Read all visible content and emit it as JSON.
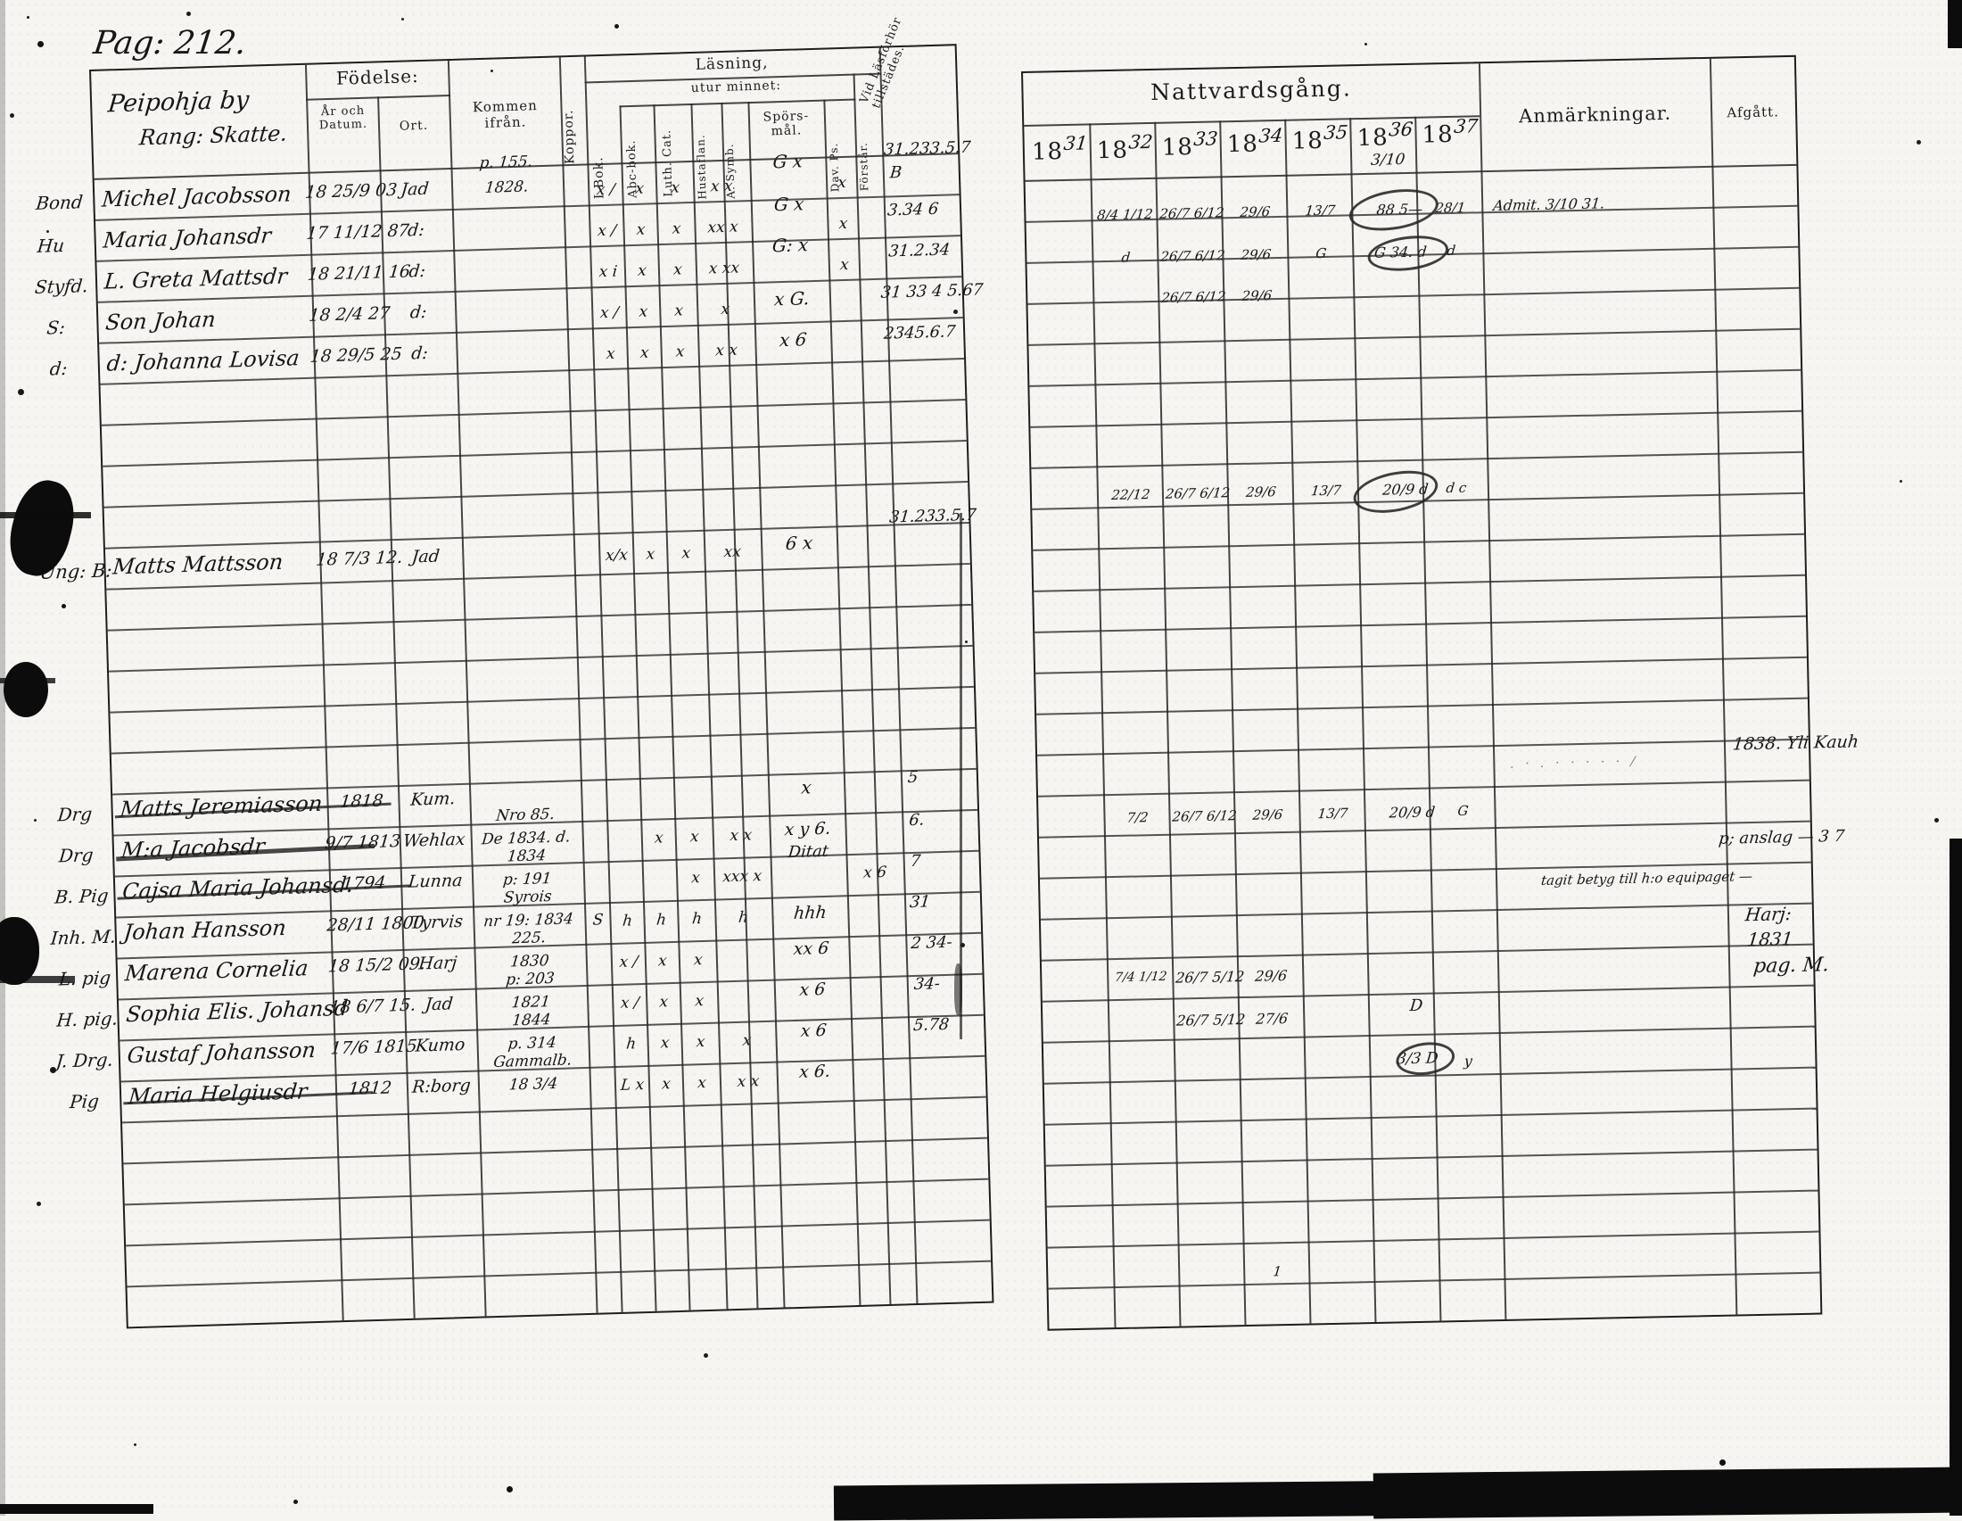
{
  "page_label": "Pag: 212.",
  "left": {
    "village_line1": "Peipohja by",
    "village_line2": "Rang: Skatte.",
    "h": {
      "fodelse": "Födelse:",
      "ar": "År och Datum.",
      "ort": "Ort.",
      "kommen": "Kommen ifrån.",
      "koppor": "Koppor.",
      "lasning": "Läsning,",
      "utur": "utur minnet:",
      "ibok": "I Bok.",
      "abc": "Abc-bok.",
      "luth": "Luth. Cat.",
      "hust": "Hustaflan.",
      "symb": "A. Symb.",
      "spors": "Spörs-mål.",
      "davps": "Dav. Ps.",
      "forstar": "Förstår.",
      "vid1": "Vid Läsförhör",
      "vid2": "tillstädes."
    },
    "rows": [
      {
        "margin": "Bond",
        "name": "Michel Jacobsson",
        "born": "18 25/9 03",
        "ort": "Jad",
        "kommen_pre": "p. 155.",
        "kommen": "1828.",
        "m_ibok": "x /",
        "m_abc": "x",
        "m_luth": "x",
        "m_hust": "x x",
        "m_spors": "G  x",
        "m_davps": "x",
        "vid": "31.233.5.7",
        "vid2": "B"
      },
      {
        "margin": "Hu",
        "name": "Maria Johansdr",
        "born": "17 11/12 87",
        "ort": "d:",
        "m_ibok": "x /",
        "m_abc": "x",
        "m_luth": "x",
        "m_hust": "xx x",
        "m_spors": "G  x",
        "m_davps": "x",
        "vid": "3.34 6"
      },
      {
        "margin": "Styfd.",
        "name": "L. Greta Mattsdr",
        "born": "18 21/11 16",
        "ort": "d:",
        "m_ibok": "x i",
        "m_abc": "x",
        "m_luth": "x",
        "m_hust": "x xx",
        "m_spors": "G:  x",
        "m_davps": "x",
        "vid": "31.2.34"
      },
      {
        "margin": "S:",
        "name": "Son Johan",
        "born": "18 2/4 27",
        "ort": "d:",
        "m_ibok": "x /",
        "m_abc": "x",
        "m_luth": "x",
        "m_hust": "x",
        "m_spors": "x G.",
        "vid": "31 33 4 5.67"
      },
      {
        "margin": "d:",
        "name": "d: Johanna Lovisa",
        "born": "18 29/5 25",
        "ort": "d:",
        "m_ibok": "x",
        "m_abc": "x",
        "m_luth": "x",
        "m_hust": "x x",
        "m_spors": "x 6",
        "vid": "2345.6.7"
      },
      {
        "margin": "Ung: B:",
        "name": "Matts Mattsson",
        "born": "18 7/3 12.",
        "ort": "Jad",
        "m_ibok": "x/x",
        "m_abc": "x",
        "m_luth": "x",
        "m_hust": "xx",
        "m_spors": "6  x",
        "vid": "31.233.5.7"
      },
      {
        "margin": "Drg",
        "name": "Matts Jeremiasson",
        "born": "1818",
        "ort": "Kum.",
        "m_spors": "x",
        "vid": "5"
      },
      {
        "margin": "Drg",
        "name": "M:a Jacobsdr",
        "born": "9/7 1813",
        "ort": "Wehlax",
        "kommen_pre": "Nro 85.",
        "kommen": "De 1834. d.",
        "m_abc": "x",
        "m_luth": "x",
        "m_hust": "x x",
        "m_spors": "x y 6.",
        "vid": "6."
      },
      {
        "margin": "B. Pig",
        "name": "Cajsa Maria Johansd.",
        "born": "1794",
        "ort": "Lunna",
        "kommen_pre": "1834",
        "kommen": "p: 191",
        "m_luth": "x",
        "m_hust": "xxx x",
        "m_spors": "Ditat",
        "m_davps": "x 6",
        "vid": "7"
      },
      {
        "margin": "Inh. M.",
        "name": "Johan Hansson",
        "born": "28/11 1800",
        "ort": "Tyrvis",
        "kommen_pre": "Syrois",
        "kommen": "nr 19: 1834",
        "m_koppor": "S",
        "m_ibok": "h",
        "m_abc": "h",
        "m_luth": "h",
        "m_hust": "h",
        "m_spors": "hhh",
        "vid": "31"
      },
      {
        "margin": "L. pig",
        "name": "Marena Cornelia",
        "born": "18 15/2 09.",
        "ort": "Harj",
        "kommen_pre": "225.",
        "kommen": "1830",
        "m_ibok": "x /",
        "m_abc": "x",
        "m_luth": "x",
        "m_spors": "xx 6",
        "vid": "2 34-"
      },
      {
        "margin": "H. pig.",
        "name": "Sophia Elis. Johansd",
        "born": "18 6/7 15.",
        "ort": "Jad",
        "kommen_pre": "p: 203",
        "kommen": "1821",
        "m_ibok": "x /",
        "m_abc": "x",
        "m_luth": "x",
        "m_spors": "x 6",
        "vid": "34-"
      },
      {
        "margin": "J. Drg.",
        "name": "Gustaf Johansson",
        "born": "17/6 1815",
        "ort": "Kumo",
        "kommen_pre": "1844",
        "kommen": "p. 314",
        "m_ibok": "h",
        "m_abc": "x",
        "m_luth": "x",
        "m_hust": "x",
        "m_spors": "x 6",
        "vid": "5.78"
      },
      {
        "margin": "Pig",
        "name": "Maria Helgiusdr",
        "born": "1812",
        "ort": "R:borg",
        "kommen_pre": "Gammalb.",
        "kommen": "18 3/4",
        "m_ibok": "L x",
        "m_abc": "x",
        "m_luth": "x",
        "m_hust": "x x",
        "m_spors": "x 6."
      }
    ]
  },
  "right": {
    "title": "Nattvardsgång.",
    "prefix": "18",
    "years": [
      "31",
      "32",
      "33",
      "34",
      "35",
      "36",
      "37"
    ],
    "year_note": "3/10",
    "anm": "Anmärkningar.",
    "afg": "Afgått.",
    "rows": [
      {
        "c1": "8/4 1/12",
        "c2": "26/7 6/12",
        "c3": "29/6",
        "c4": "13/7",
        "c5": "88 5—",
        "c6": "28/1"
      },
      {
        "c1": "d",
        "c2": "26/7 6/12",
        "c3": "29/6",
        "c4": "G",
        "c5": "G 34. d",
        "c6": "d",
        "anm": "Admit. 3/10 31."
      },
      {
        "c2": "26/7 6/12",
        "c3": "29/6"
      },
      {
        "c1": "22/12",
        "c2": "26/7 6/12",
        "c3": "29/6",
        "c4": "13/7",
        "c5": "20/9 d",
        "c6": "d c"
      },
      {
        "c1": "7/2",
        "c2": "26/7 6/12",
        "c3": "29/6",
        "c4": "13/7",
        "c5": "20/9 d",
        "c6": "G"
      },
      {
        "c1": "7/4 1/12",
        "c2": "26/7 5/12",
        "c3": "29/6"
      },
      {
        "c2": "26/7 5/12",
        "c3": "27/6",
        "c5": "D"
      },
      {
        "c5": "3/3 D",
        "c6": "y"
      },
      {
        "c3": "1"
      }
    ],
    "notes": {
      "afg_top": "1838. Yli Kauh",
      "anm_dots": ". · . · · · · · /",
      "anm_anslag": "p; anslag — 3 7",
      "anm_betyg": "tagit betyg till h:o equipaget —",
      "afg_harj": "Harj:",
      "afg_1831": "1831",
      "afg_pag": "pag. M."
    }
  }
}
